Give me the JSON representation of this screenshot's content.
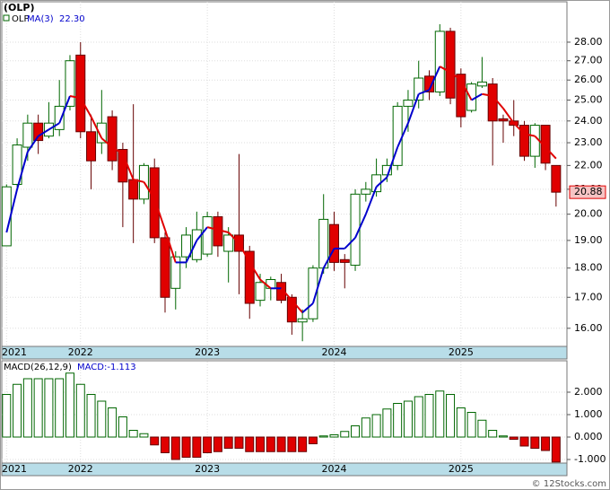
{
  "chart_data": [
    {
      "type": "candlestick",
      "title": "(OLP)",
      "log_scale": true,
      "grid": true,
      "categories": [
        "2021",
        null,
        null,
        null,
        null,
        null,
        null,
        "2022",
        null,
        null,
        null,
        null,
        null,
        null,
        null,
        null,
        null,
        null,
        null,
        "2023",
        null,
        null,
        null,
        null,
        null,
        null,
        null,
        null,
        null,
        null,
        null,
        "2024",
        null,
        null,
        null,
        null,
        null,
        null,
        null,
        null,
        null,
        null,
        null,
        "2025",
        null,
        null,
        null,
        null,
        null,
        null,
        null,
        null,
        null
      ],
      "series": [
        {
          "name": "OLP",
          "up_color": "#006600",
          "down_color": "#e00000",
          "last_label": "20.88",
          "open": [
            18.8,
            21.2,
            22.8,
            23.9,
            23.3,
            23.6,
            24.7,
            27.3,
            23.5,
            23.0,
            24.2,
            22.7,
            21.4,
            20.6,
            21.9,
            19.1,
            17.3,
            18.4,
            18.3,
            18.5,
            19.9,
            18.6,
            19.2,
            18.6,
            16.9,
            17.3,
            17.5,
            17.0,
            16.2,
            16.3,
            18.0,
            19.6,
            18.3,
            18.1,
            20.8,
            20.9,
            21.6,
            22.0,
            24.7,
            25.0,
            26.2,
            25.4,
            28.6,
            26.3,
            24.5,
            25.7,
            25.8,
            24.1,
            24.0,
            23.8,
            22.4,
            23.8,
            22.0
          ],
          "high": [
            21.2,
            23.2,
            24.3,
            24.3,
            24.9,
            26.0,
            27.3,
            28.0,
            24.3,
            25.5,
            24.5,
            23.0,
            24.8,
            22.1,
            22.3,
            19.3,
            18.6,
            19.5,
            20.1,
            20.1,
            20.1,
            19.5,
            22.5,
            18.8,
            17.8,
            17.7,
            17.8,
            17.1,
            16.6,
            18.1,
            20.8,
            20.1,
            18.5,
            21.0,
            21.3,
            22.3,
            22.3,
            24.9,
            25.5,
            27.0,
            26.5,
            29.0,
            28.8,
            26.6,
            25.9,
            27.2,
            26.1,
            24.3,
            25.0,
            24.0,
            23.9,
            23.8,
            22.0
          ],
          "low": [
            18.8,
            21.1,
            22.2,
            22.5,
            23.2,
            23.3,
            24.5,
            23.2,
            21.0,
            22.5,
            21.8,
            19.5,
            18.9,
            20.4,
            18.9,
            16.5,
            16.6,
            18.0,
            18.2,
            18.4,
            18.4,
            17.5,
            17.1,
            16.3,
            16.7,
            16.9,
            16.8,
            15.8,
            15.6,
            16.2,
            17.8,
            17.9,
            17.3,
            17.9,
            20.5,
            20.7,
            21.3,
            21.8,
            23.5,
            24.6,
            25.0,
            25.2,
            24.8,
            23.7,
            24.4,
            25.6,
            22.0,
            23.0,
            23.3,
            22.2,
            21.9,
            21.8,
            20.3
          ],
          "close": [
            21.1,
            22.9,
            23.9,
            23.1,
            23.9,
            24.7,
            27.0,
            23.5,
            22.2,
            23.9,
            22.2,
            21.3,
            20.6,
            22.0,
            19.1,
            17.0,
            18.4,
            19.2,
            19.4,
            19.9,
            18.8,
            19.2,
            18.6,
            16.8,
            17.5,
            17.6,
            16.9,
            16.2,
            16.3,
            18.0,
            19.8,
            18.2,
            18.2,
            20.8,
            21.0,
            21.6,
            22.0,
            24.7,
            25.0,
            26.1,
            25.4,
            28.6,
            25.1,
            24.2,
            25.8,
            25.9,
            24.0,
            24.0,
            23.8,
            22.4,
            23.8,
            22.1,
            20.88
          ]
        },
        {
          "name": "MA(3)",
          "up_color": "#0000cc",
          "down_color": "#e00000",
          "last_label": "22.30",
          "values": [
            19.3,
            21.0,
            22.6,
            23.3,
            23.6,
            23.9,
            25.2,
            25.1,
            24.2,
            23.2,
            22.8,
            22.5,
            21.4,
            21.3,
            20.6,
            19.4,
            18.2,
            18.2,
            19.0,
            19.5,
            19.4,
            19.3,
            18.9,
            18.2,
            17.6,
            17.3,
            17.3,
            16.9,
            16.5,
            16.8,
            18.0,
            18.7,
            18.7,
            19.1,
            20.0,
            21.1,
            21.5,
            22.8,
            23.9,
            25.3,
            25.5,
            26.7,
            26.4,
            26.0,
            25.0,
            25.3,
            25.2,
            24.6,
            23.9,
            23.4,
            23.3,
            22.8,
            22.3
          ]
        }
      ],
      "ylim": [
        15.47,
        30.3
      ],
      "yticks": [
        {
          "value": 16,
          "label": "16.00"
        },
        {
          "value": 17,
          "label": "17.00"
        },
        {
          "value": 18,
          "label": "18.00"
        },
        {
          "value": 19,
          "label": "19.00"
        },
        {
          "value": 20,
          "label": "20.00"
        },
        {
          "value": 21,
          "label": "21.00"
        },
        {
          "value": 22,
          "label": "22.00"
        },
        {
          "value": 23,
          "label": "23.00"
        },
        {
          "value": 24,
          "label": "24.00"
        },
        {
          "value": 25,
          "label": "25.00"
        },
        {
          "value": 26,
          "label": "26.00"
        },
        {
          "value": 27,
          "label": "27.00"
        },
        {
          "value": 28,
          "label": "28.00"
        }
      ]
    },
    {
      "type": "bar",
      "title": "MACD(26,12,9)",
      "grid": true,
      "categories": [
        "2021",
        null,
        null,
        null,
        null,
        null,
        null,
        "2022",
        null,
        null,
        null,
        null,
        null,
        null,
        null,
        null,
        null,
        null,
        null,
        "2023",
        null,
        null,
        null,
        null,
        null,
        null,
        null,
        null,
        null,
        null,
        null,
        "2024",
        null,
        null,
        null,
        null,
        null,
        null,
        null,
        null,
        null,
        null,
        null,
        "2025",
        null,
        null,
        null,
        null,
        null,
        null,
        null,
        null,
        null
      ],
      "series": [
        {
          "label": "MACD:-1.113",
          "up_color": "#006600",
          "down_color": "#e00000",
          "values": [
            1.9,
            2.35,
            2.6,
            2.6,
            2.6,
            2.6,
            2.85,
            2.35,
            1.9,
            1.6,
            1.3,
            0.9,
            0.3,
            0.15,
            -0.35,
            -0.7,
            -1.0,
            -0.9,
            -0.9,
            -0.7,
            -0.65,
            -0.5,
            -0.5,
            -0.65,
            -0.65,
            -0.65,
            -0.65,
            -0.65,
            -0.65,
            -0.3,
            0.05,
            0.1,
            0.25,
            0.5,
            0.85,
            1.0,
            1.25,
            1.5,
            1.6,
            1.8,
            1.9,
            2.05,
            1.9,
            1.3,
            1.1,
            0.75,
            0.3,
            0.05,
            -0.1,
            -0.4,
            -0.5,
            -0.6,
            -1.113
          ]
        }
      ],
      "ylim": [
        -1.16,
        3.36
      ],
      "yticks": [
        {
          "value": -1,
          "label": "-1.000"
        },
        {
          "value": 0,
          "label": "0.000"
        },
        {
          "value": 1,
          "label": "1.000"
        },
        {
          "value": 2,
          "label": "2.000"
        }
      ]
    }
  ],
  "watermark": "© 12Stocks.com"
}
